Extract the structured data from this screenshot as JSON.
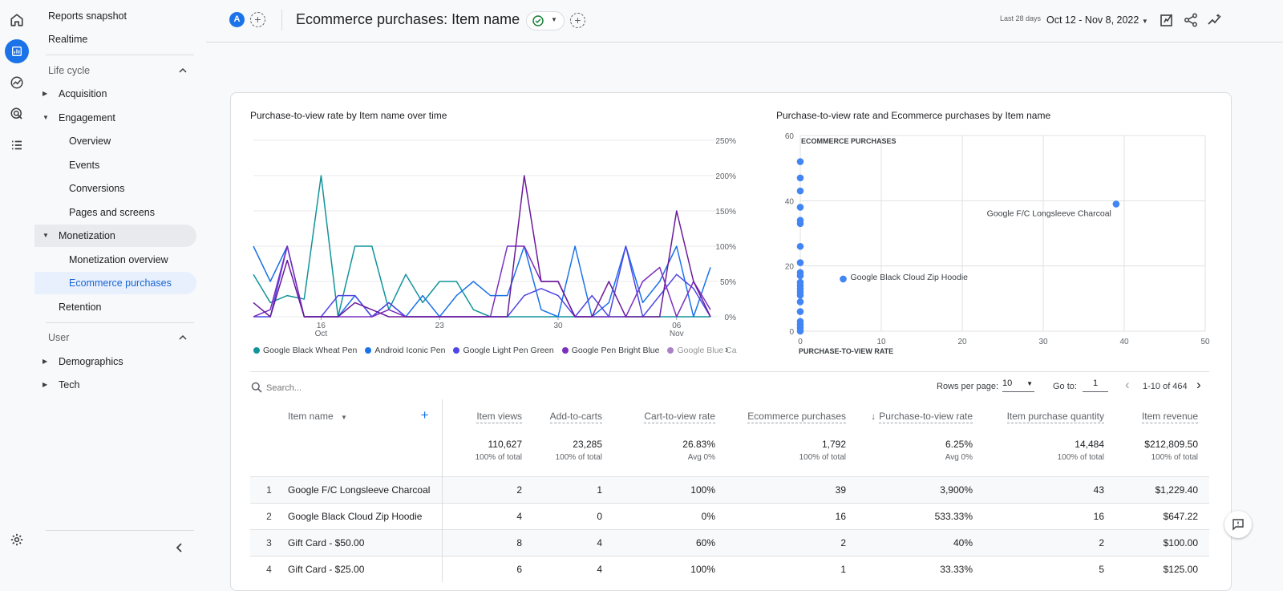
{
  "nav": {
    "reports_snapshot": "Reports snapshot",
    "realtime": "Realtime",
    "lifecycle": "Life cycle",
    "acquisition": "Acquisition",
    "engagement": "Engagement",
    "overview": "Overview",
    "events": "Events",
    "conversions": "Conversions",
    "pages_and_screens": "Pages and screens",
    "monetization": "Monetization",
    "monetization_overview": "Monetization overview",
    "ecommerce_purchases": "Ecommerce purchases",
    "retention": "Retention",
    "user": "User",
    "demographics": "Demographics",
    "tech": "Tech"
  },
  "header": {
    "avatar": "A",
    "title": "Ecommerce purchases: Item name",
    "date_prefix": "Last 28 days",
    "date_range": "Oct 12 - Nov 8, 2022"
  },
  "line_chart": {
    "title": "Purchase-to-view rate by Item name over time",
    "y_ticks": [
      "250%",
      "200%",
      "150%",
      "100%",
      "50%",
      "0%"
    ],
    "x_ticks": [
      {
        "day": "16",
        "month": "Oct"
      },
      {
        "day": "23",
        "month": ""
      },
      {
        "day": "30",
        "month": ""
      },
      {
        "day": "06",
        "month": "Nov"
      }
    ],
    "legend": [
      {
        "name": "Google Black Wheat Pen",
        "color": "#12939a"
      },
      {
        "name": "Android Iconic Pen",
        "color": "#1a73e8"
      },
      {
        "name": "Google Light Pen Green",
        "color": "#4f46e5"
      },
      {
        "name": "Google Pen Bright Blue",
        "color": "#7b2fbf"
      },
      {
        "name": "Google Blue Ca",
        "color": "#6a1b9a"
      }
    ]
  },
  "scatter": {
    "title": "Purchase-to-view rate and Ecommerce purchases by Item name",
    "y_label": "ECOMMERCE PURCHASES",
    "x_label": "PURCHASE-TO-VIEW RATE",
    "y_ticks": [
      "60",
      "40",
      "20",
      "0"
    ],
    "x_ticks": [
      "0",
      "10",
      "20",
      "30",
      "40",
      "50"
    ],
    "annotations": [
      "Google F/C Longsleeve Charcoal",
      "Google Black Cloud Zip Hoodie"
    ]
  },
  "chart_data": [
    {
      "type": "line",
      "title": "Purchase-to-view rate by Item name over time",
      "x": [
        "Oct 12",
        "Oct 13",
        "Oct 14",
        "Oct 15",
        "Oct 16",
        "Oct 17",
        "Oct 18",
        "Oct 19",
        "Oct 20",
        "Oct 21",
        "Oct 22",
        "Oct 23",
        "Oct 24",
        "Oct 25",
        "Oct 26",
        "Oct 27",
        "Oct 28",
        "Oct 29",
        "Oct 30",
        "Oct 31",
        "Nov 1",
        "Nov 2",
        "Nov 3",
        "Nov 4",
        "Nov 5",
        "Nov 6",
        "Nov 7",
        "Nov 8"
      ],
      "ylim": [
        0,
        250
      ],
      "series": [
        {
          "name": "Google Black Wheat Pen",
          "values": [
            60,
            20,
            30,
            25,
            200,
            0,
            100,
            100,
            10,
            60,
            20,
            50,
            50,
            10,
            0,
            0,
            0,
            0,
            0,
            0,
            0,
            0,
            0,
            0,
            0,
            0,
            0,
            0
          ]
        },
        {
          "name": "Android Iconic Pen",
          "values": [
            100,
            50,
            100,
            0,
            0,
            0,
            30,
            0,
            20,
            0,
            30,
            0,
            30,
            50,
            30,
            30,
            100,
            10,
            0,
            100,
            0,
            20,
            100,
            20,
            50,
            100,
            0,
            70
          ]
        },
        {
          "name": "Google Light Pen Green",
          "values": [
            0,
            0,
            100,
            0,
            0,
            30,
            30,
            0,
            20,
            0,
            0,
            0,
            0,
            0,
            0,
            0,
            30,
            40,
            30,
            0,
            30,
            0,
            100,
            0,
            30,
            60,
            40,
            0
          ]
        },
        {
          "name": "Google Pen Bright Blue",
          "values": [
            0,
            10,
            100,
            0,
            0,
            0,
            0,
            0,
            10,
            0,
            0,
            0,
            0,
            0,
            0,
            100,
            100,
            50,
            50,
            0,
            0,
            0,
            0,
            50,
            70,
            0,
            50,
            10
          ]
        },
        {
          "name": "Google Blue Ca",
          "values": [
            20,
            0,
            80,
            0,
            0,
            0,
            20,
            10,
            0,
            0,
            0,
            0,
            0,
            0,
            0,
            0,
            200,
            50,
            50,
            0,
            0,
            50,
            0,
            0,
            0,
            150,
            50,
            0
          ]
        }
      ]
    },
    {
      "type": "scatter",
      "title": "Purchase-to-view rate and Ecommerce purchases by Item name",
      "xlabel": "PURCHASE-TO-VIEW RATE",
      "ylabel": "ECOMMERCE PURCHASES",
      "xlim": [
        0,
        50
      ],
      "ylim": [
        0,
        60
      ],
      "points": [
        {
          "x": 39,
          "y": 39,
          "label": "Google F/C Longsleeve Charcoal"
        },
        {
          "x": 5.3,
          "y": 16,
          "label": "Google Black Cloud Zip Hoodie"
        },
        {
          "x": 0,
          "y": 52
        },
        {
          "x": 0,
          "y": 47
        },
        {
          "x": 0,
          "y": 43
        },
        {
          "x": 0,
          "y": 38
        },
        {
          "x": 0,
          "y": 34
        },
        {
          "x": 0,
          "y": 33
        },
        {
          "x": 0,
          "y": 26
        },
        {
          "x": 0,
          "y": 21
        },
        {
          "x": 0,
          "y": 18
        },
        {
          "x": 0,
          "y": 17
        },
        {
          "x": 0,
          "y": 15
        },
        {
          "x": 0,
          "y": 14
        },
        {
          "x": 0,
          "y": 13
        },
        {
          "x": 0,
          "y": 12
        },
        {
          "x": 0,
          "y": 11
        },
        {
          "x": 0,
          "y": 9
        },
        {
          "x": 0,
          "y": 6
        },
        {
          "x": 0,
          "y": 3
        },
        {
          "x": 0,
          "y": 2
        },
        {
          "x": 0,
          "y": 1
        },
        {
          "x": 0,
          "y": 0
        }
      ]
    }
  ],
  "table": {
    "search_placeholder": "Search...",
    "rows_per_page_label": "Rows per page:",
    "rows_per_page": "10",
    "goto_label": "Go to:",
    "goto_value": "1",
    "page_info": "1-10 of 464",
    "columns": [
      "Item name",
      "Item views",
      "Add-to-carts",
      "Cart-to-view rate",
      "Ecommerce purchases",
      "Purchase-to-view rate",
      "Item purchase quantity",
      "Item revenue"
    ],
    "totals": [
      {
        "value": "110,627",
        "label": "100% of total"
      },
      {
        "value": "23,285",
        "label": "100% of total"
      },
      {
        "value": "26.83%",
        "label": "Avg 0%"
      },
      {
        "value": "1,792",
        "label": "100% of total"
      },
      {
        "value": "6.25%",
        "label": "Avg 0%"
      },
      {
        "value": "14,484",
        "label": "100% of total"
      },
      {
        "value": "$212,809.50",
        "label": "100% of total"
      }
    ],
    "rows": [
      {
        "n": "1",
        "name": "Google F/C Longsleeve Charcoal",
        "cells": [
          "2",
          "1",
          "100%",
          "39",
          "3,900%",
          "43",
          "$1,229.40"
        ]
      },
      {
        "n": "2",
        "name": "Google Black Cloud Zip Hoodie",
        "cells": [
          "4",
          "0",
          "0%",
          "16",
          "533.33%",
          "16",
          "$647.22"
        ]
      },
      {
        "n": "3",
        "name": "Gift Card - $50.00",
        "cells": [
          "8",
          "4",
          "60%",
          "2",
          "40%",
          "2",
          "$100.00"
        ]
      },
      {
        "n": "4",
        "name": "Gift Card - $25.00",
        "cells": [
          "6",
          "4",
          "100%",
          "1",
          "33.33%",
          "5",
          "$125.00"
        ]
      }
    ]
  }
}
